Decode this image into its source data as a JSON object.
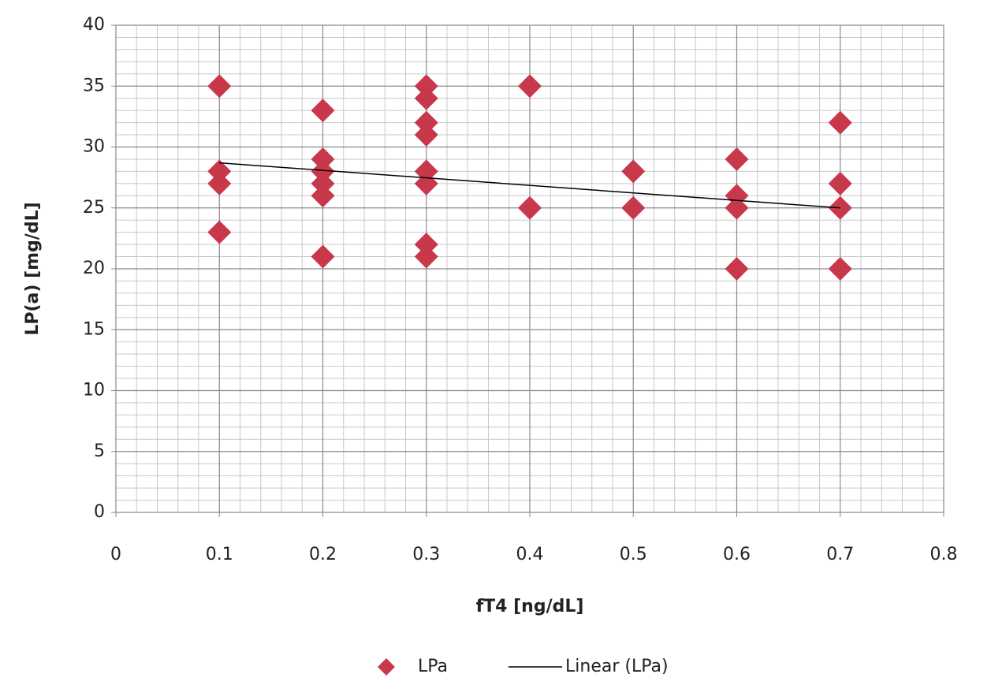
{
  "chart_data": {
    "type": "scatter",
    "xlabel": "fT4 [ng/dL]",
    "ylabel": "LP(a) [mg/dL]",
    "xlim": [
      0,
      0.8
    ],
    "xticks": [
      0,
      0.1,
      0.2,
      0.3,
      0.4,
      0.5,
      0.6,
      0.7,
      0.8
    ],
    "ylim": [
      0,
      40
    ],
    "yticks": [
      0,
      5,
      10,
      15,
      20,
      25,
      30,
      35,
      40
    ],
    "grid": true,
    "minor_grid": true,
    "legend": "bottom",
    "series": [
      {
        "name": "LPa",
        "type": "scatter",
        "color": "#c8384b",
        "x": [
          0.1,
          0.1,
          0.1,
          0.1,
          0.2,
          0.2,
          0.2,
          0.2,
          0.2,
          0.2,
          0.3,
          0.3,
          0.3,
          0.3,
          0.3,
          0.3,
          0.3,
          0.3,
          0.4,
          0.4,
          0.5,
          0.5,
          0.6,
          0.6,
          0.6,
          0.6,
          0.7,
          0.7,
          0.7,
          0.7
        ],
        "values": [
          35,
          28,
          27,
          23,
          33,
          29,
          28,
          27,
          26,
          21,
          35,
          34,
          32,
          31,
          28,
          27,
          22,
          21,
          35,
          25,
          28,
          25,
          29,
          26,
          25,
          20,
          32,
          27,
          25,
          20
        ]
      },
      {
        "name": "Linear (LPa)",
        "type": "line",
        "color": "#000000",
        "x": [
          0.1,
          0.7
        ],
        "values": [
          28.7,
          25.0
        ]
      }
    ]
  }
}
